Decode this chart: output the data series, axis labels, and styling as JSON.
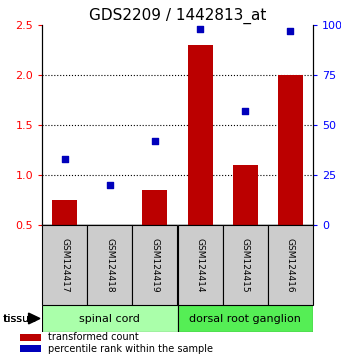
{
  "title": "GDS2209 / 1442813_at",
  "samples": [
    "GSM124417",
    "GSM124418",
    "GSM124419",
    "GSM124414",
    "GSM124415",
    "GSM124416"
  ],
  "red_values": [
    0.75,
    0.5,
    0.85,
    2.3,
    1.1,
    2.0
  ],
  "blue_values": [
    33,
    20,
    42,
    98,
    57,
    97
  ],
  "ylim_left": [
    0.5,
    2.5
  ],
  "ylim_right": [
    0,
    100
  ],
  "left_ticks": [
    0.5,
    1.0,
    1.5,
    2.0,
    2.5
  ],
  "right_ticks": [
    0,
    25,
    50,
    75,
    100
  ],
  "right_tick_labels": [
    "0",
    "25",
    "50",
    "75",
    "100%"
  ],
  "group1_label": "spinal cord",
  "group2_label": "dorsal root ganglion",
  "group1_indices": [
    0,
    1,
    2
  ],
  "group2_indices": [
    3,
    4,
    5
  ],
  "group1_color": "#aaffaa",
  "group2_color": "#55ee55",
  "sample_area_color": "#cccccc",
  "tissue_label": "tissue",
  "red_bar_color": "#bb0000",
  "blue_marker_color": "#0000bb",
  "legend_red_label": "transformed count",
  "legend_blue_label": "percentile rank within the sample",
  "bar_width": 0.55,
  "dotted_grid_lines": [
    1.0,
    1.5,
    2.0
  ],
  "title_fontsize": 11,
  "tick_fontsize": 8,
  "sample_fontsize": 6.5,
  "group_fontsize": 8,
  "legend_fontsize": 7
}
